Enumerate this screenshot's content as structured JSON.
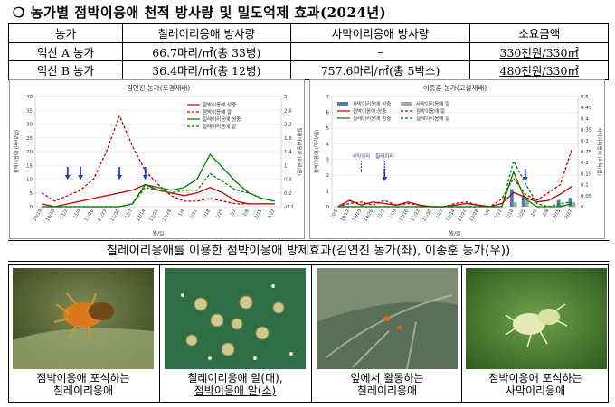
{
  "title": "❍ 농가별 점박이응애 천적 방사량 및 밀도억제 효과(2024년)",
  "table": {
    "headers": [
      "농가",
      "칠레이리응애 방사량",
      "사막이리응애 방사량",
      "소요금액"
    ],
    "rows": [
      [
        "익산 A 농가",
        "66.7마리/㎡(총 33병)",
        "–",
        "330천원/330㎡"
      ],
      [
        "익산 B 농가",
        "36.4마리/㎡(총 12병)",
        "757.6마리/㎡(총 5박스)",
        "480천원/330㎡"
      ]
    ]
  },
  "chart_data": [
    {
      "type": "line",
      "title": "김연진 농가(토경재배)",
      "xlabel": "월/일",
      "ylabel": "점박이응애 (마리/엽)",
      "y2label": "칠레이리응애 (마리/엽)",
      "x": [
        "10/19",
        "10/26",
        "11/2",
        "11/9",
        "11/16",
        "11/23",
        "11/30",
        "12/7",
        "12/14",
        "12/21",
        "12/28",
        "1/4",
        "1/11",
        "1/18",
        "1/25",
        "2/1",
        "2/8",
        "2/15",
        "2/22"
      ],
      "ylim": [
        0,
        40
      ],
      "yticks": [
        0,
        5,
        10,
        15,
        20,
        25,
        30,
        35,
        40
      ],
      "y2lim": [
        -0.2,
        3
      ],
      "y2ticks": [
        "-0.2",
        "0.2",
        "0.6",
        "1",
        "1.4",
        "1.8",
        "2.2",
        "2.6",
        "3"
      ],
      "legend": [
        "점박이응애 성충",
        "점박이응애 알",
        "칠레이리응애 성충",
        "칠레이리응애 알"
      ],
      "series": [
        {
          "name": "점박이응애 성충",
          "color": "#c00000",
          "dash": false,
          "values": [
            1,
            0,
            1,
            2,
            3,
            4,
            5,
            6,
            8,
            6,
            5,
            4,
            5,
            7,
            5,
            2,
            1,
            1,
            1
          ]
        },
        {
          "name": "점박이응애 알",
          "color": "#c00000",
          "dash": true,
          "values": [
            5,
            2,
            4,
            6,
            10,
            20,
            33,
            22,
            13,
            8,
            4,
            2,
            2,
            3,
            2,
            1,
            1,
            1,
            1
          ]
        },
        {
          "name": "칠레이리응애 성충",
          "color": "#007a00",
          "dash": false,
          "values": [
            0,
            0,
            0,
            0,
            0,
            0,
            0,
            1,
            8,
            7,
            6,
            7,
            10,
            19,
            14,
            9,
            5,
            3,
            2
          ]
        },
        {
          "name": "칠레이리응애 알",
          "color": "#007a00",
          "dash": true,
          "values": [
            0,
            0,
            0,
            0,
            0,
            0,
            0,
            1,
            7,
            6,
            5,
            6,
            6,
            12,
            9,
            6,
            5,
            3,
            2
          ]
        }
      ],
      "release_arrows": [
        2,
        3,
        6,
        8
      ]
    },
    {
      "type": "bar+line",
      "title": "이종훈 농가(고설재배)",
      "xlabel": "월/일",
      "ylabel": "점박이응애 (마리/엽)",
      "y2label": "사막이리응애 (마리/엽)",
      "x": [
        "10/5",
        "10/12",
        "10/19",
        "10/26",
        "11/2",
        "11/9",
        "11/16",
        "11/23",
        "11/30",
        "12/7",
        "12/14",
        "12/21",
        "12/28",
        "1/4",
        "1/11",
        "1/18",
        "1/25",
        "2/1",
        "2/8",
        "2/15",
        "2/22"
      ],
      "ylim": [
        0,
        7
      ],
      "yticks": [
        0,
        1,
        2,
        3,
        4,
        5,
        6,
        7
      ],
      "y2lim": [
        0,
        0.5
      ],
      "y2ticks": [
        "0",
        "0.05",
        "0.1",
        "0.15",
        "0.2",
        "0.25",
        "0.3",
        "0.35",
        "0.4",
        "0.45",
        "0.5"
      ],
      "legend": [
        "사막이리응애 성충",
        "사막이리응애 알",
        "점박이응애 성충",
        "점박이응애 알",
        "칠레이리응애 성충",
        "칠레이리응애 알"
      ],
      "bars": [
        {
          "name": "사막이리응애 성충",
          "color": "#4a7ebb",
          "values": [
            0,
            0,
            0,
            0,
            0,
            0,
            0,
            0,
            0,
            0,
            0,
            0,
            0,
            0,
            0,
            0.08,
            0.05,
            0,
            0,
            0.03,
            0.04
          ]
        },
        {
          "name": "사막이리응애 알",
          "color": "#a6a6a6",
          "values": [
            0,
            0,
            0,
            0,
            0,
            0,
            0,
            0,
            0,
            0,
            0,
            0,
            0,
            0,
            0,
            0.02,
            0.03,
            0,
            0,
            0.01,
            0.02
          ]
        }
      ],
      "series": [
        {
          "name": "점박이응애 성충",
          "color": "#c00000",
          "dash": false,
          "values": [
            0,
            0.4,
            0.1,
            0.3,
            0.2,
            0.1,
            0.3,
            0.1,
            0,
            0,
            0.1,
            0.2,
            0.1,
            0,
            0.2,
            0.9,
            0.6,
            0.3,
            0.4,
            0.8,
            1.3
          ]
        },
        {
          "name": "점박이응애 알",
          "color": "#c00000",
          "dash": true,
          "values": [
            0,
            0.2,
            0.3,
            0.1,
            0.4,
            0.1,
            0.2,
            0.1,
            0,
            0,
            0.2,
            0.3,
            0.1,
            0,
            0.5,
            1.8,
            0.8,
            0.4,
            0.9,
            1.4,
            3.7
          ]
        },
        {
          "name": "칠레이리응애 성충",
          "color": "#007a00",
          "dash": false,
          "values": [
            0,
            0,
            0,
            0,
            0,
            0,
            0,
            0,
            0,
            0,
            0,
            0,
            0,
            0,
            0,
            2.2,
            0.5,
            0,
            0,
            0,
            0.2
          ]
        },
        {
          "name": "칠레이리응애 알",
          "color": "#007a00",
          "dash": true,
          "values": [
            0,
            0,
            0,
            0,
            0,
            0,
            0,
            0,
            0,
            0,
            0,
            0,
            0,
            0,
            0,
            2.9,
            1.5,
            0.2,
            0,
            0.2,
            0.3
          ]
        }
      ],
      "annotations": [
        {
          "label": "사막이리",
          "x_index": 2,
          "color": "#7030a0"
        },
        {
          "label": "칠레이리",
          "x_index": 4,
          "color": "#1f1f7a"
        }
      ],
      "release_arrows": [
        4,
        16
      ]
    }
  ],
  "chart_caption": "칠레이리응애를 이용한 점박이응애 방제효과(김연진 농가(좌), 이종훈 농가(우))",
  "photos": [
    {
      "line1": "점박이응애 포식하는",
      "line2": "칠레이리응애"
    },
    {
      "line1": "칠레이리응애 알(대),",
      "line2": "점박이응애 알(소)"
    },
    {
      "line1": "잎에서 활동하는",
      "line2": "칠레이리응애"
    },
    {
      "line1": "점박이응애 포식하는",
      "line2": "사막이리응애"
    }
  ]
}
